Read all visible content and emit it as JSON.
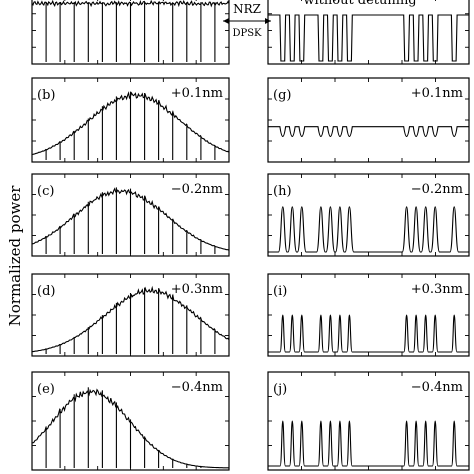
{
  "figure": {
    "ylabel": "Normalized power",
    "top_right_text": "without detuning",
    "arrow_upper_label": "NRZ",
    "arrow_lower_label": "DPSK"
  },
  "left_panels": [
    {
      "label": "",
      "detune": "",
      "envelope": "flat"
    },
    {
      "label": "(b)",
      "detune": "+0.1nm",
      "envelope": "center"
    },
    {
      "label": "(c)",
      "detune": "−0.2nm",
      "envelope": "left"
    },
    {
      "label": "(d)",
      "detune": "+0.3nm",
      "envelope": "right"
    },
    {
      "label": "(e)",
      "detune": "−0.4nm",
      "envelope": "farleft"
    }
  ],
  "right_panels": [
    {
      "label": "",
      "detune": "",
      "style": "high"
    },
    {
      "label": "(g)",
      "detune": "+0.1nm",
      "style": "shallow"
    },
    {
      "label": "(h)",
      "detune": "−0.2nm",
      "style": "broad"
    },
    {
      "label": "(i)",
      "detune": "+0.3nm",
      "style": "narrow"
    },
    {
      "label": "(j)",
      "detune": "−0.4nm",
      "style": "narrow"
    }
  ],
  "bit_pattern": [
    1,
    1,
    1,
    0,
    1,
    1,
    1,
    1,
    0,
    0,
    0,
    0,
    0,
    1,
    1,
    1,
    1,
    0,
    1
  ]
}
